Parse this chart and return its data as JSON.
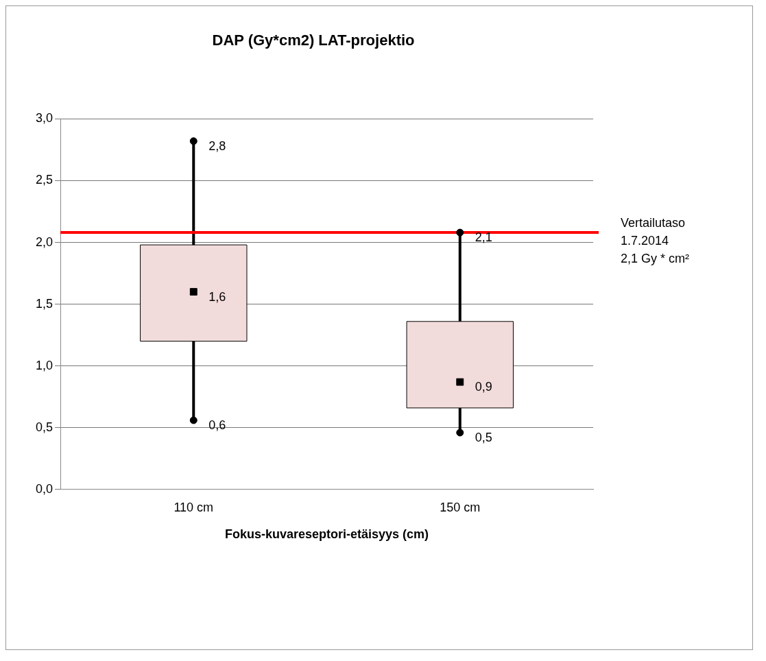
{
  "chart_data": {
    "type": "box",
    "title": "DAP (Gy*cm2) LAT-projektio",
    "xlabel": "Fokus-kuvareseptori-etäisyys (cm)",
    "categories": [
      "110 cm",
      "150 cm"
    ],
    "color": "#f2dcdb",
    "boxes": [
      {
        "low": 0.56,
        "q1": 1.2,
        "median": 1.6,
        "q3": 1.98,
        "high": 2.82
      },
      {
        "low": 0.46,
        "q1": 0.66,
        "median": 0.87,
        "q3": 1.36,
        "high": 2.08
      }
    ],
    "ylim": [
      0,
      3
    ],
    "yticks": [
      {
        "value": 0,
        "label": "0,0"
      },
      {
        "value": 0.5,
        "label": "0,5"
      },
      {
        "value": 1,
        "label": "1,0"
      },
      {
        "value": 1.5,
        "label": "1,5"
      },
      {
        "value": 2,
        "label": "2,0"
      },
      {
        "value": 2.5,
        "label": "2,5"
      },
      {
        "value": 3,
        "label": "3,0"
      }
    ],
    "series": [
      {
        "type": "scatter",
        "marker": "circle",
        "color": "#000000",
        "values": [
          2.82,
          2.08
        ]
      },
      {
        "type": "scatter",
        "marker": "circle",
        "color": "#000000",
        "values": [
          0.56,
          0.46
        ]
      }
    ],
    "grid": "y",
    "legend": false,
    "marker": "square",
    "ref_lines": [
      {
        "axis": "y",
        "value": 2.08,
        "label": "Vertailutaso\n1.7.2014\n2,1 Gy * cm²",
        "color": "#ff0000"
      }
    ],
    "annotations": [
      "2,8",
      "1,6",
      "0,6",
      "2,1",
      "0,9",
      "0,5"
    ]
  }
}
